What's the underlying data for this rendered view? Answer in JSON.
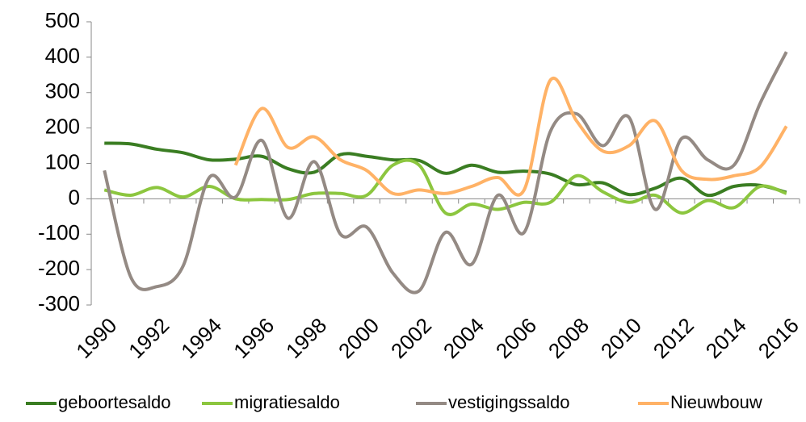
{
  "chart_data": {
    "type": "line",
    "x": [
      1990,
      1991,
      1992,
      1993,
      1994,
      1995,
      1996,
      1997,
      1998,
      1999,
      2000,
      2001,
      2002,
      2003,
      2004,
      2005,
      2006,
      2007,
      2008,
      2009,
      2010,
      2011,
      2012,
      2013,
      2014,
      2015,
      2016
    ],
    "xlim": [
      1989.5,
      2016.5
    ],
    "xticks": [
      1990,
      1992,
      1994,
      1996,
      1998,
      2000,
      2002,
      2004,
      2006,
      2008,
      2010,
      2012,
      2014,
      2016
    ],
    "ylim": [
      -300,
      500
    ],
    "yticks": [
      -300,
      -200,
      -100,
      0,
      100,
      200,
      300,
      400,
      500
    ],
    "smooth": true,
    "series": [
      {
        "name": "geboortesaldo",
        "color": "#3a7d22",
        "values": [
          157,
          155,
          140,
          130,
          110,
          112,
          120,
          85,
          75,
          125,
          120,
          110,
          108,
          72,
          95,
          75,
          78,
          70,
          40,
          45,
          12,
          30,
          58,
          10,
          35,
          38,
          18
        ]
      },
      {
        "name": "migratiesaldo",
        "color": "#8cc63f",
        "values": [
          25,
          10,
          32,
          5,
          35,
          0,
          -2,
          -2,
          15,
          15,
          10,
          95,
          95,
          -40,
          -15,
          -30,
          -10,
          -10,
          65,
          20,
          -10,
          10,
          -40,
          -5,
          -25,
          35,
          15
        ]
      },
      {
        "name": "vestigingssaldo",
        "color": "#948a84",
        "values": [
          80,
          -220,
          -248,
          -190,
          60,
          5,
          165,
          -55,
          105,
          -100,
          -80,
          -210,
          -260,
          -95,
          -185,
          10,
          -95,
          190,
          240,
          150,
          230,
          -30,
          170,
          110,
          95,
          270,
          415
        ]
      },
      {
        "name": "Nieuwbouw",
        "color": "#ffb266",
        "values": [
          null,
          null,
          null,
          null,
          null,
          95,
          255,
          145,
          175,
          110,
          80,
          15,
          25,
          15,
          35,
          60,
          25,
          335,
          220,
          135,
          150,
          220,
          80,
          55,
          65,
          90,
          205
        ]
      }
    ]
  }
}
